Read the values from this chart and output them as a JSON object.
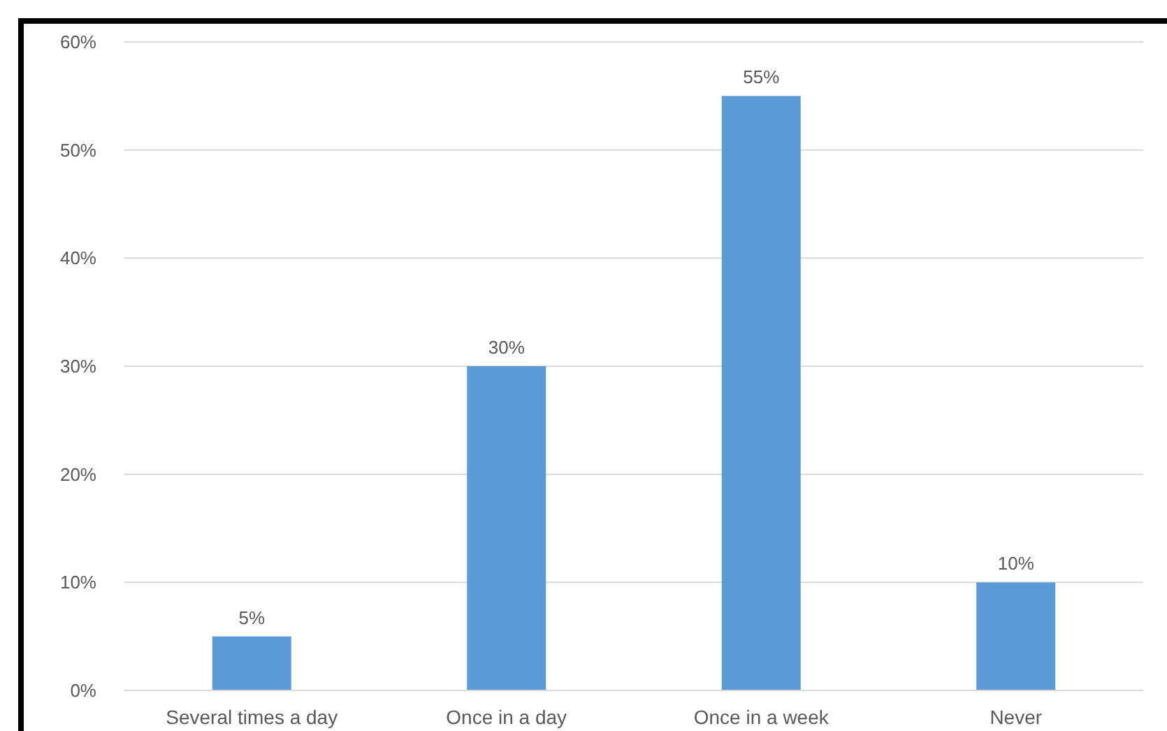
{
  "chart_data": {
    "type": "bar",
    "categories": [
      "Several times a day",
      "Once in a day",
      "Once in a week",
      "Never"
    ],
    "values": [
      5,
      30,
      55,
      10
    ],
    "color": "#5b9bd5",
    "value_labels": [
      "5%",
      "30%",
      "55%",
      "10%"
    ],
    "ylim": [
      0,
      60
    ],
    "yticks": [
      {
        "value": 0,
        "label": "0%"
      },
      {
        "value": 10,
        "label": "10%"
      },
      {
        "value": 20,
        "label": "20%"
      },
      {
        "value": 30,
        "label": "30%"
      },
      {
        "value": 40,
        "label": "40%"
      },
      {
        "value": 50,
        "label": "50%"
      },
      {
        "value": 60,
        "label": "60%"
      }
    ],
    "grid": "y"
  }
}
